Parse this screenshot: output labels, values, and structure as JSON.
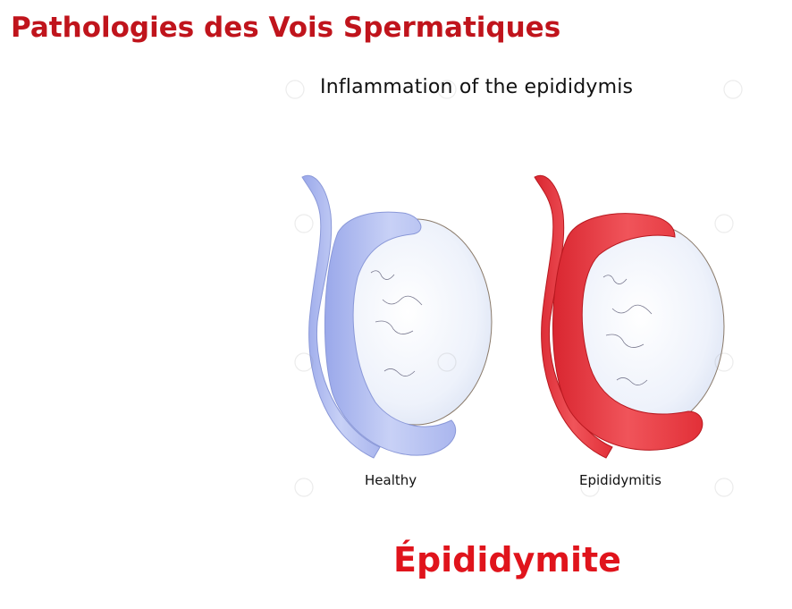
{
  "slide": {
    "title": "Pathologies des Vois Spermatiques",
    "caption": "Épididymite"
  },
  "figure": {
    "title": "Inflammation of the epididymis",
    "panels": [
      {
        "label": "Healthy",
        "epididymis_color": "#b8c4f2"
      },
      {
        "label": "Epididymitis",
        "epididymis_color": "#e8343c"
      }
    ]
  },
  "colors": {
    "title_red": "#c0141c",
    "caption_red": "#e0141c",
    "testis_fill": "#e9eef8"
  }
}
